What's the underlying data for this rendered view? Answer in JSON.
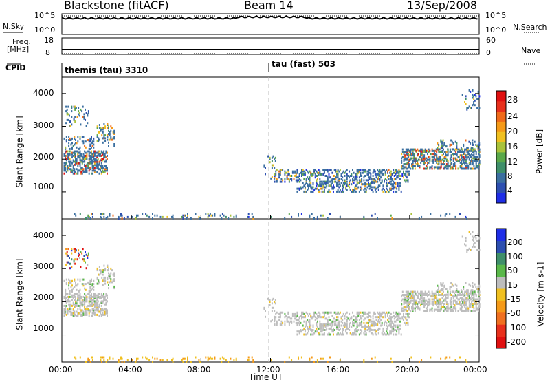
{
  "header": {
    "title": "Blackstone (fitACF)",
    "beam": "Beam 14",
    "date": "13/Sep/2008"
  },
  "strip_labels": {
    "nsky": "N.Sky",
    "nsearch": "N.Search",
    "freq_line1": "Freq.",
    "freq_line2": "[MHz]",
    "nave": "Nave",
    "cpid": "CPID",
    "nsky_ticks": [
      "10^5",
      "10^0"
    ],
    "nsearch_ticks": [
      "10^5",
      "10^0"
    ],
    "freq_ticks": [
      "18",
      "8"
    ],
    "nave_ticks": [
      "60",
      "0"
    ]
  },
  "cpid_modes": [
    {
      "label": "themis (tau) 3310",
      "start_hour": 0
    },
    {
      "label": "tau (fast) 503",
      "start_hour": 12
    }
  ],
  "colors": {
    "power_scale": [
      "#1f2ee6",
      "#2d4fb0",
      "#3b6fa0",
      "#3f8f6a",
      "#5aa84a",
      "#a9c23a",
      "#f0c020",
      "#f59a18",
      "#f06a1a",
      "#e8301c",
      "#e01010"
    ],
    "velocity_scale": [
      "#1f2ee6",
      "#2d4fb0",
      "#3f8f6a",
      "#5ab84a",
      "#bdbdbd",
      "#f0c020",
      "#f59a18",
      "#f07020",
      "#e8301c",
      "#e01010"
    ]
  },
  "chart_data": [
    {
      "type": "heatmap",
      "name": "power-panel",
      "title": "",
      "ylabel": "Slant Range [km]",
      "xlabel": "",
      "colorbar_label": "Power [dB]",
      "colorbar_ticks": [
        "4",
        "8",
        "12",
        "16",
        "20",
        "24",
        "28"
      ],
      "ylim": [
        180,
        4500
      ],
      "yticks": [
        "1000",
        "2000",
        "3000",
        "4000"
      ],
      "xlim_hours": [
        0,
        24
      ]
    },
    {
      "type": "heatmap",
      "name": "velocity-panel",
      "title": "",
      "ylabel": "Slant Range [km]",
      "xlabel": "Time UT",
      "colorbar_label": "Velocity [m s-1]",
      "colorbar_ticks": [
        "200",
        "100",
        "50",
        "15",
        "-15",
        "-50",
        "-100",
        "-200"
      ],
      "ylim": [
        180,
        4500
      ],
      "yticks": [
        "1000",
        "2000",
        "3000",
        "4000"
      ],
      "xlim_hours": [
        0,
        24
      ],
      "xticks": [
        "00:00",
        "04:00",
        "08:00",
        "12:00",
        "16:00",
        "20:00",
        "00:00"
      ]
    }
  ]
}
